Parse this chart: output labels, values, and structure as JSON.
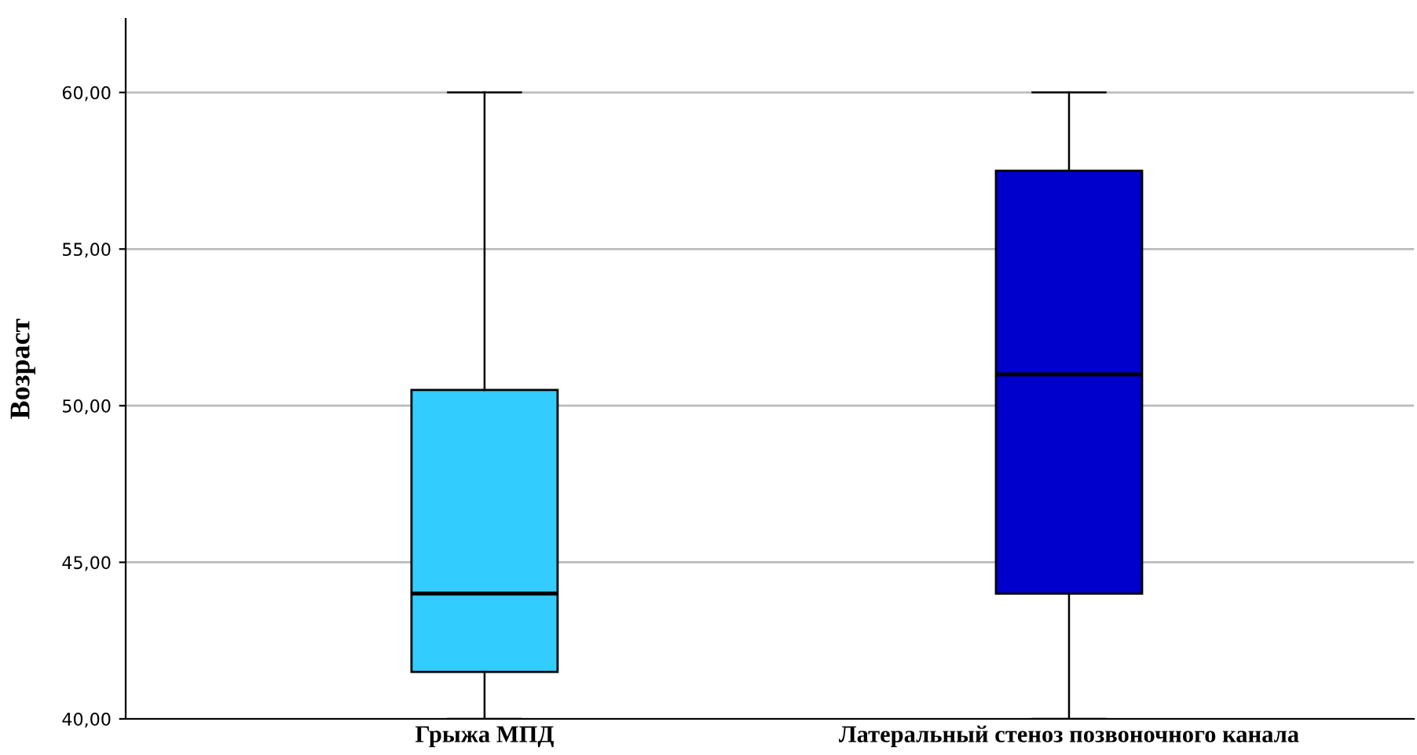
{
  "chart_data": {
    "type": "box",
    "ylabel": "Возраст",
    "categories": [
      "Грыжа МПД",
      "Латеральный стеноз позвоночного канала"
    ],
    "colors": [
      "#33ccff",
      "#0000cc"
    ],
    "boxes": [
      {
        "low": 40,
        "q1": 41.5,
        "median": 44,
        "q3": 50.5,
        "high": 60
      },
      {
        "low": 40,
        "q1": 44,
        "median": 51,
        "q3": 57.5,
        "high": 60
      }
    ],
    "ylim": [
      40,
      62.35
    ],
    "yticks": [
      {
        "value": 40,
        "label": "40,00"
      },
      {
        "value": 45,
        "label": "45,00"
      },
      {
        "value": 50,
        "label": "50,00"
      },
      {
        "value": 55,
        "label": "55,00"
      },
      {
        "value": 60,
        "label": "60,00"
      }
    ],
    "grid": "y"
  }
}
